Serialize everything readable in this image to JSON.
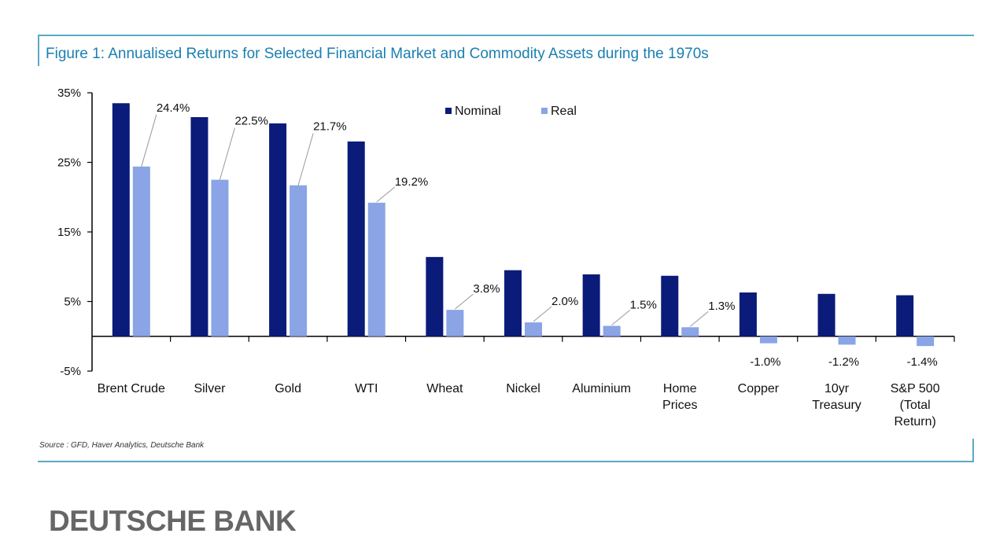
{
  "figure_title": "Figure 1: Annualised Returns for Selected Financial Market and Commodity Assets during the 1970s",
  "source_note": "Source : GFD, Haver Analytics, Deutsche Bank",
  "footer_brand": "DEUTSCHE BANK",
  "colors": {
    "nominal": "#0a1b7a",
    "real": "#8aa4e6",
    "frame": "#5aa9c7",
    "title": "#1a7fb0"
  },
  "chart_data": {
    "type": "bar",
    "title": "",
    "xlabel": "",
    "ylabel": "",
    "ylim": [
      -5,
      35
    ],
    "yticks": [
      35,
      25,
      15,
      5,
      -5
    ],
    "ytick_labels": [
      "35%",
      "25%",
      "15%",
      "5%",
      "-5%"
    ],
    "grid": false,
    "legend_position": "top-center",
    "categories": [
      [
        "Brent Crude"
      ],
      [
        "Silver"
      ],
      [
        "Gold"
      ],
      [
        "WTI"
      ],
      [
        "Wheat"
      ],
      [
        "Nickel"
      ],
      [
        "Aluminium"
      ],
      [
        "Home",
        "Prices"
      ],
      [
        "Copper"
      ],
      [
        "10yr",
        "Treasury"
      ],
      [
        "S&P 500",
        "(Total",
        "Return)"
      ]
    ],
    "series": [
      {
        "name": "Nominal",
        "values": [
          33.5,
          31.5,
          30.6,
          28.0,
          11.4,
          9.5,
          8.9,
          8.7,
          6.3,
          6.1,
          5.9
        ]
      },
      {
        "name": "Real",
        "values": [
          24.4,
          22.5,
          21.7,
          19.2,
          3.8,
          2.0,
          1.5,
          1.3,
          -1.0,
          -1.2,
          -1.4
        ]
      }
    ],
    "real_value_labels": [
      "24.4%",
      "22.5%",
      "21.7%",
      "19.2%",
      "3.8%",
      "2.0%",
      "1.5%",
      "1.3%",
      "-1.0%",
      "-1.2%",
      "-1.4%"
    ]
  }
}
